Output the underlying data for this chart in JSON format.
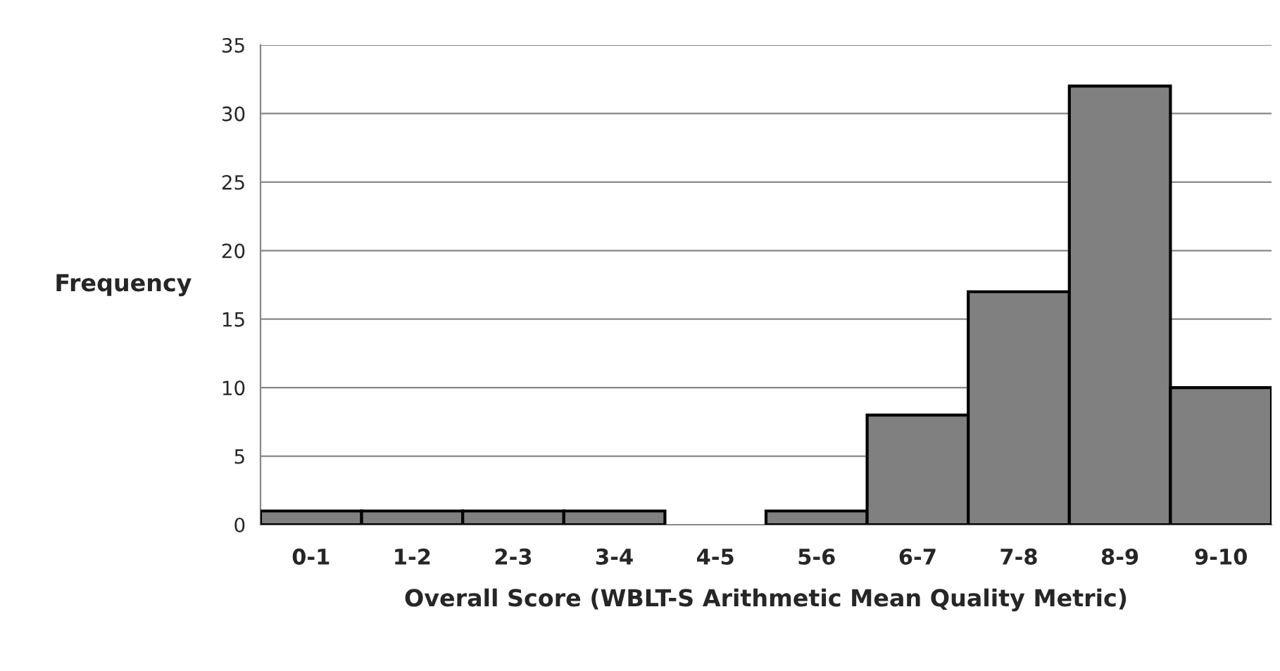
{
  "chart_data": {
    "type": "bar",
    "xlabel": "Overall Score (WBLT-S Arithmetic Mean Quality Metric)",
    "ylabel": "Frequency",
    "categories": [
      "0-1",
      "1-2",
      "2-3",
      "3-4",
      "4-5",
      "5-6",
      "6-7",
      "7-8",
      "8-9",
      "9-10"
    ],
    "values": [
      1,
      1,
      1,
      1,
      0,
      1,
      8,
      17,
      32,
      10
    ],
    "color": "#808080",
    "ylim": [
      0,
      35
    ],
    "yticks": [
      0,
      5,
      10,
      15,
      20,
      25,
      30,
      35
    ],
    "grid": "y"
  }
}
